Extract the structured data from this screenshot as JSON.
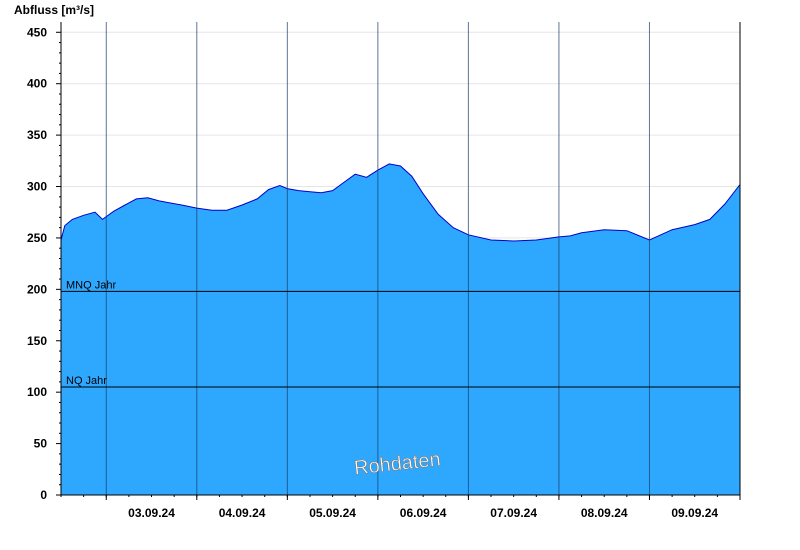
{
  "chart_data": {
    "type": "area",
    "ylabel": "Abfluss [m³/s]",
    "ylim": [
      0,
      460
    ],
    "yticks": [
      0,
      50,
      100,
      150,
      200,
      250,
      300,
      350,
      400,
      450
    ],
    "xlim": [
      "02.09.24 12:00",
      "09.09.24 24:00"
    ],
    "xtick_labels": [
      "03.09.24",
      "04.09.24",
      "05.09.24",
      "06.09.24",
      "07.09.24",
      "08.09.24",
      "09.09.24"
    ],
    "grid": true,
    "fill_color": "#2ea8ff",
    "line_color": "#0000cc",
    "series": [
      {
        "x": [
          "02.09.24 12:00",
          "02.09.24 13:00",
          "02.09.24 15:00",
          "02.09.24 18:00",
          "02.09.24 21:00",
          "02.09.24 23:00",
          "03.09.24 02:00",
          "03.09.24 05:00",
          "03.09.24 08:00",
          "03.09.24 11:00",
          "03.09.24 14:00",
          "03.09.24 17:00",
          "03.09.24 20:00",
          "04.09.24 00:00",
          "04.09.24 04:00",
          "04.09.24 08:00",
          "04.09.24 12:00",
          "04.09.24 16:00",
          "04.09.24 19:00",
          "04.09.24 22:00",
          "05.09.24 00:00",
          "05.09.24 03:00",
          "05.09.24 06:00",
          "05.09.24 09:00",
          "05.09.24 12:00",
          "05.09.24 15:00",
          "05.09.24 18:00",
          "05.09.24 21:00",
          "06.09.24 00:00",
          "06.09.24 03:00",
          "06.09.24 06:00",
          "06.09.24 09:00",
          "06.09.24 12:00",
          "06.09.24 16:00",
          "06.09.24 20:00",
          "07.09.24 00:00",
          "07.09.24 06:00",
          "07.09.24 12:00",
          "07.09.24 18:00",
          "08.09.24 00:00",
          "08.09.24 03:00",
          "08.09.24 06:00",
          "08.09.24 12:00",
          "08.09.24 18:00",
          "09.09.24 00:00",
          "09.09.24 06:00",
          "09.09.24 12:00",
          "09.09.24 16:00",
          "09.09.24 20:00",
          "09.09.24 24:00"
        ],
        "values": [
          248,
          262,
          268,
          272,
          275,
          268,
          276,
          282,
          288,
          289,
          286,
          284,
          282,
          279,
          277,
          277,
          282,
          288,
          297,
          301,
          298,
          296,
          295,
          294,
          296,
          304,
          312,
          309,
          316,
          322,
          320,
          310,
          293,
          273,
          260,
          253,
          248,
          247,
          248,
          251,
          252,
          255,
          258,
          257,
          248,
          258,
          263,
          268,
          283,
          302
        ]
      }
    ],
    "reference_lines": [
      {
        "label": "MNQ Jahr",
        "value": 198
      },
      {
        "label": "NQ Jahr",
        "value": 105
      }
    ],
    "watermark": "Rohdaten"
  }
}
